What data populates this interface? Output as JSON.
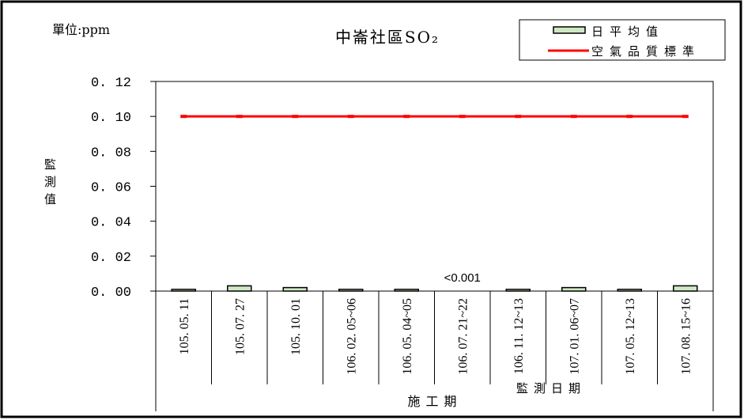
{
  "chart_data": {
    "type": "bar",
    "title": "中崙社區SO₂",
    "unit_label": "單位:ppm",
    "ylabel": "監測值",
    "xlabel": "施工期",
    "xlabel_secondary": "監測日期",
    "ylim": [
      0,
      0.12
    ],
    "y_ticks": [
      0.12,
      0.1,
      0.08,
      0.06,
      0.04,
      0.02,
      0
    ],
    "y_tick_labels": [
      "0. 12",
      "0. 10",
      "0. 08",
      "0. 06",
      "0. 04",
      "0. 02",
      "0. 00"
    ],
    "categories": [
      "105. 05. 11",
      "105. 07. 27",
      "105. 10. 01",
      "106. 02. 05~06",
      "106. 05. 04~05",
      "106. 07. 21~22",
      "106. 11. 12~13",
      "107. 01. 06~07",
      "107. 05. 12~13",
      "107. 08. 15~16"
    ],
    "series": [
      {
        "name": "日平均值",
        "type": "bar",
        "color": "#cfe8c4",
        "values": [
          0.001,
          0.003,
          0.002,
          0.001,
          0.001,
          null,
          0.001,
          0.002,
          0.001,
          0.003
        ]
      },
      {
        "name": "空氣品質標準",
        "type": "line",
        "color": "#ff0000",
        "values": [
          0.1,
          0.1,
          0.1,
          0.1,
          0.1,
          0.1,
          0.1,
          0.1,
          0.1,
          0.1
        ]
      }
    ],
    "annotations": [
      {
        "text": "<0.001",
        "category": "106. 07. 21~22"
      }
    ],
    "legend_position": "top-right",
    "grid": false
  }
}
